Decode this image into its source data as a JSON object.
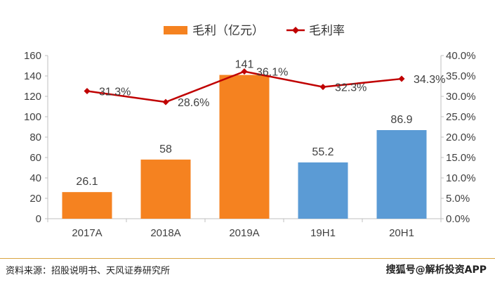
{
  "chart_data": {
    "type": "bar",
    "categories": [
      "2017A",
      "2018A",
      "2019A",
      "19H1",
      "20H1"
    ],
    "series": [
      {
        "name": "毛利（亿元）",
        "kind": "bar",
        "axis": "left",
        "values": [
          26.1,
          58,
          141,
          55.2,
          86.9
        ],
        "value_labels": [
          "26.1",
          "58",
          "141",
          "55.2",
          "86.9"
        ],
        "colors": [
          "#F58220",
          "#F58220",
          "#F58220",
          "#5B9BD5",
          "#5B9BD5"
        ]
      },
      {
        "name": "毛利率",
        "kind": "line",
        "axis": "right",
        "values": [
          31.3,
          28.6,
          36.1,
          32.3,
          34.3
        ],
        "value_labels": [
          "31.3%",
          "28.6%",
          "36.1%",
          "32.3%",
          "34.3%"
        ],
        "color": "#C00000"
      }
    ],
    "y_left": {
      "ylim": [
        0,
        160
      ],
      "ticks": [
        "0",
        "20",
        "40",
        "60",
        "80",
        "100",
        "120",
        "140",
        "160"
      ]
    },
    "y_right": {
      "ylim": [
        0,
        40
      ],
      "ticks": [
        "0.0%",
        "5.0%",
        "10.0%",
        "15.0%",
        "20.0%",
        "25.0%",
        "30.0%",
        "35.0%",
        "40.0%"
      ]
    },
    "legend_position": "top",
    "grid": false
  },
  "footer": {
    "source": "资料来源：招股说明书、天风证券研究所",
    "watermark": "搜狐号@解析投资APP"
  }
}
